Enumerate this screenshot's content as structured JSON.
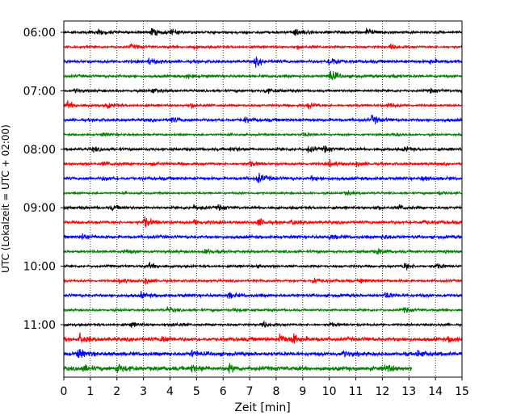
{
  "chart_data": {
    "type": "line",
    "title": "",
    "xlabel": "Zeit  [min]",
    "ylabel": "UTC (Lokalzeit = UTC + 02:00)",
    "xlim": [
      0,
      15
    ],
    "x_ticks": [
      0,
      1,
      2,
      3,
      4,
      5,
      6,
      7,
      8,
      9,
      10,
      11,
      12,
      13,
      14,
      15
    ],
    "x_tick_labels": [
      "0",
      "1",
      "2",
      "3",
      "4",
      "5",
      "6",
      "7",
      "8",
      "9",
      "10",
      "11",
      "12",
      "13",
      "14",
      "15"
    ],
    "y_ticks": [
      "06:00",
      "07:00",
      "08:00",
      "09:00",
      "10:00",
      "11:00"
    ],
    "grid": "vertical-dotted",
    "colors": [
      "#000000",
      "#ff0000",
      "#0000ff",
      "#008000"
    ],
    "traces": [
      {
        "start": "06:00",
        "color": "#000000",
        "noise": 0.35,
        "events": [
          [
            1.3,
            0.7
          ],
          [
            3.3,
            1.0
          ],
          [
            4.0,
            0.6
          ],
          [
            8.7,
            1.2
          ],
          [
            11.4,
            1.1
          ]
        ]
      },
      {
        "start": "06:15",
        "color": "#ff0000",
        "noise": 0.3,
        "events": [
          [
            2.5,
            0.6
          ],
          [
            4.8,
            0.5
          ],
          [
            8.8,
            0.5
          ],
          [
            12.3,
            0.6
          ]
        ]
      },
      {
        "start": "06:30",
        "color": "#0000ff",
        "noise": 0.4,
        "events": [
          [
            3.2,
            0.7
          ],
          [
            7.2,
            1.0
          ],
          [
            10.0,
            1.4
          ],
          [
            13.8,
            0.5
          ]
        ]
      },
      {
        "start": "06:45",
        "color": "#008000",
        "noise": 0.35,
        "events": [
          [
            4.6,
            0.5
          ],
          [
            10.0,
            1.7
          ],
          [
            12.3,
            0.5
          ]
        ]
      },
      {
        "start": "07:00",
        "color": "#000000",
        "noise": 0.3,
        "events": [
          [
            0.4,
            0.5
          ],
          [
            3.3,
            0.6
          ],
          [
            7.6,
            0.7
          ],
          [
            13.8,
            0.5
          ]
        ]
      },
      {
        "start": "07:15",
        "color": "#ff0000",
        "noise": 0.3,
        "events": [
          [
            0.1,
            1.1
          ],
          [
            1.6,
            0.7
          ],
          [
            4.8,
            0.6
          ],
          [
            9.2,
            0.8
          ],
          [
            12.2,
            0.7
          ]
        ]
      },
      {
        "start": "07:30",
        "color": "#0000ff",
        "noise": 0.4,
        "events": [
          [
            4.0,
            0.7
          ],
          [
            6.8,
            0.6
          ],
          [
            11.6,
            1.0
          ]
        ]
      },
      {
        "start": "07:45",
        "color": "#008000",
        "noise": 0.25,
        "events": [
          [
            1.4,
            0.5
          ],
          [
            9.0,
            0.6
          ],
          [
            12.4,
            0.4
          ]
        ]
      },
      {
        "start": "08:00",
        "color": "#000000",
        "noise": 0.35,
        "events": [
          [
            1.1,
            0.5
          ],
          [
            6.3,
            0.5
          ],
          [
            9.2,
            0.8
          ],
          [
            9.8,
            0.7
          ],
          [
            12.8,
            0.6
          ]
        ]
      },
      {
        "start": "08:15",
        "color": "#ff0000",
        "noise": 0.35,
        "events": [
          [
            1.5,
            0.6
          ],
          [
            3.3,
            0.5
          ],
          [
            7.0,
            0.6
          ],
          [
            10.0,
            0.8
          ],
          [
            11.0,
            0.6
          ]
        ]
      },
      {
        "start": "08:30",
        "color": "#0000ff",
        "noise": 0.4,
        "events": [
          [
            1.5,
            0.4
          ],
          [
            7.3,
            1.2
          ],
          [
            9.3,
            0.5
          ],
          [
            13.5,
            0.5
          ]
        ]
      },
      {
        "start": "08:45",
        "color": "#008000",
        "noise": 0.25,
        "events": [
          [
            10.6,
            0.7
          ],
          [
            14.1,
            0.6
          ]
        ]
      },
      {
        "start": "09:00",
        "color": "#000000",
        "noise": 0.35,
        "events": [
          [
            1.8,
            0.6
          ],
          [
            4.9,
            0.6
          ],
          [
            5.8,
            0.6
          ],
          [
            11.7,
            0.5
          ],
          [
            12.6,
            0.7
          ]
        ]
      },
      {
        "start": "09:15",
        "color": "#ff0000",
        "noise": 0.4,
        "events": [
          [
            3.0,
            1.4
          ],
          [
            4.9,
            0.7
          ],
          [
            7.3,
            1.0
          ],
          [
            8.6,
            0.6
          ],
          [
            13.5,
            0.5
          ]
        ]
      },
      {
        "start": "09:30",
        "color": "#0000ff",
        "noise": 0.4,
        "events": [
          [
            0.7,
            0.9
          ],
          [
            10.0,
            0.6
          ],
          [
            12.0,
            0.5
          ]
        ]
      },
      {
        "start": "09:45",
        "color": "#008000",
        "noise": 0.35,
        "events": [
          [
            2.2,
            0.6
          ],
          [
            5.3,
            0.7
          ],
          [
            11.8,
            0.6
          ],
          [
            14.3,
            0.6
          ]
        ]
      },
      {
        "start": "10:00",
        "color": "#000000",
        "noise": 0.3,
        "events": [
          [
            3.2,
            0.8
          ],
          [
            7.3,
            0.5
          ],
          [
            12.8,
            0.9
          ],
          [
            14.0,
            0.6
          ]
        ]
      },
      {
        "start": "10:15",
        "color": "#ff0000",
        "noise": 0.3,
        "events": [
          [
            2.1,
            0.7
          ],
          [
            3.0,
            0.9
          ],
          [
            9.4,
            0.9
          ],
          [
            11.2,
            0.5
          ]
        ]
      },
      {
        "start": "10:30",
        "color": "#0000ff",
        "noise": 0.4,
        "events": [
          [
            2.9,
            0.6
          ],
          [
            6.2,
            0.7
          ],
          [
            12.1,
            0.8
          ]
        ]
      },
      {
        "start": "10:45",
        "color": "#008000",
        "noise": 0.3,
        "events": [
          [
            3.9,
            0.7
          ],
          [
            6.4,
            0.6
          ],
          [
            12.8,
            0.6
          ]
        ]
      },
      {
        "start": "11:00",
        "color": "#000000",
        "noise": 0.3,
        "events": [
          [
            2.5,
            0.7
          ],
          [
            4.1,
            0.5
          ],
          [
            7.5,
            0.8
          ],
          [
            10.0,
            0.5
          ]
        ]
      },
      {
        "start": "11:15",
        "color": "#ff0000",
        "noise": 0.5,
        "events": [
          [
            0.6,
            1.1
          ],
          [
            3.7,
            0.8
          ],
          [
            8.1,
            1.5
          ],
          [
            8.6,
            1.2
          ],
          [
            14.5,
            0.7
          ]
        ]
      },
      {
        "start": "11:30",
        "color": "#0000ff",
        "noise": 0.5,
        "events": [
          [
            0.5,
            1.4
          ],
          [
            4.8,
            0.8
          ],
          [
            10.5,
            0.7
          ],
          [
            13.3,
            0.8
          ]
        ]
      },
      {
        "start": "11:45",
        "color": "#008000",
        "noise": 0.55,
        "events": [
          [
            0.7,
            0.8
          ],
          [
            2.0,
            1.2
          ],
          [
            4.8,
            1.0
          ],
          [
            6.2,
            0.8
          ],
          [
            12.1,
            0.8
          ]
        ],
        "end": 13.1
      }
    ]
  }
}
